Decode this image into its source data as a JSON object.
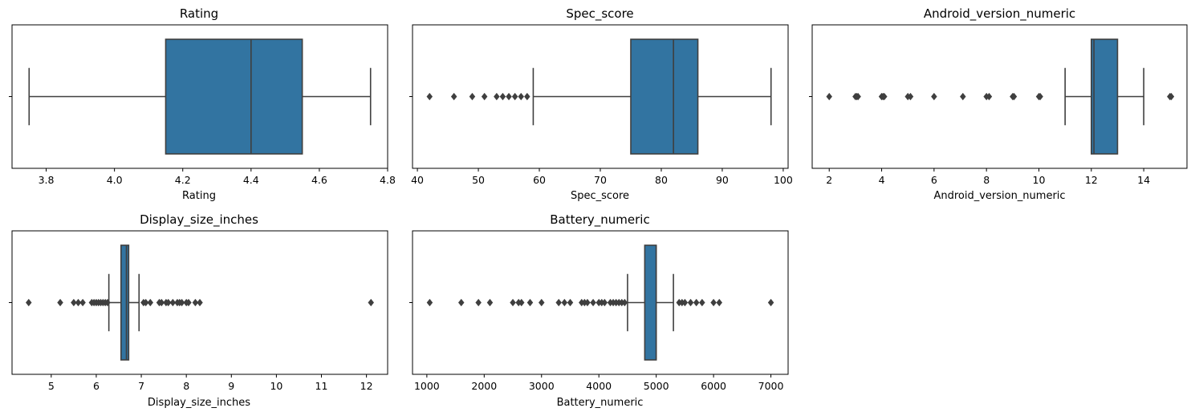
{
  "chart_data": [
    {
      "type": "box",
      "title": "Rating",
      "xlabel": "Rating",
      "xlim": [
        3.7,
        4.8
      ],
      "xticks": [
        3.8,
        4.0,
        4.2,
        4.4,
        4.6,
        4.8
      ],
      "xtick_labels": [
        "3.8",
        "4.0",
        "4.2",
        "4.4",
        "4.6",
        "4.8"
      ],
      "box": {
        "whisker_low": 3.75,
        "q1": 4.15,
        "median": 4.4,
        "q3": 4.55,
        "whisker_high": 4.75
      },
      "outliers": []
    },
    {
      "type": "box",
      "title": "Spec_score",
      "xlabel": "Spec_score",
      "xlim": [
        39.2,
        100.8
      ],
      "xticks": [
        40,
        50,
        60,
        70,
        80,
        90,
        100
      ],
      "xtick_labels": [
        "40",
        "50",
        "60",
        "70",
        "80",
        "90",
        "100"
      ],
      "box": {
        "whisker_low": 59,
        "q1": 75,
        "median": 82,
        "q3": 86,
        "whisker_high": 98
      },
      "outliers": [
        42,
        46,
        49,
        51,
        53,
        54,
        55,
        56,
        57,
        58
      ]
    },
    {
      "type": "box",
      "title": "Android_version_numeric",
      "xlabel": "Android_version_numeric",
      "xlim": [
        1.35,
        15.65
      ],
      "xticks": [
        2,
        4,
        6,
        8,
        10,
        12,
        14
      ],
      "xtick_labels": [
        "2",
        "4",
        "6",
        "8",
        "10",
        "12",
        "14"
      ],
      "box": {
        "whisker_low": 11,
        "q1": 12,
        "median": 12.1,
        "q3": 13,
        "whisker_high": 14
      },
      "outliers": [
        2,
        3,
        3.05,
        3.1,
        4,
        4.05,
        4.1,
        5,
        5.1,
        6,
        7.1,
        8,
        8.1,
        9,
        9.05,
        10,
        10.05,
        15,
        15.05
      ]
    },
    {
      "type": "box",
      "title": "Display_size_inches",
      "xlabel": "Display_size_inches",
      "xlim": [
        4.13,
        12.47
      ],
      "xticks": [
        5,
        6,
        7,
        8,
        9,
        10,
        11,
        12
      ],
      "xtick_labels": [
        "5",
        "6",
        "7",
        "8",
        "9",
        "10",
        "11",
        "12"
      ],
      "box": {
        "whisker_low": 6.28,
        "q1": 6.55,
        "median": 6.67,
        "q3": 6.72,
        "whisker_high": 6.95
      },
      "outliers": [
        4.5,
        5.2,
        5.5,
        5.6,
        5.7,
        5.9,
        5.95,
        6.0,
        6.05,
        6.1,
        6.15,
        6.2,
        6.25,
        7.05,
        7.1,
        7.2,
        7.4,
        7.45,
        7.55,
        7.6,
        7.7,
        7.8,
        7.85,
        7.9,
        8.0,
        8.05,
        8.2,
        8.3,
        12.1
      ]
    },
    {
      "type": "box",
      "title": "Battery_numeric",
      "xlabel": "Battery_numeric",
      "xlim": [
        750,
        7300
      ],
      "xticks": [
        1000,
        2000,
        3000,
        4000,
        5000,
        6000,
        7000
      ],
      "xtick_labels": [
        "1000",
        "2000",
        "3000",
        "4000",
        "5000",
        "6000",
        "7000"
      ],
      "box": {
        "whisker_low": 4500,
        "q1": 4800,
        "median": 5000,
        "q3": 5000,
        "whisker_high": 5300
      },
      "outliers": [
        1050,
        1600,
        1900,
        2100,
        2500,
        2600,
        2650,
        2800,
        3000,
        3300,
        3400,
        3500,
        3700,
        3750,
        3800,
        3900,
        4000,
        4050,
        4100,
        4200,
        4250,
        4300,
        4350,
        4400,
        4450,
        5400,
        5450,
        5500,
        5600,
        5700,
        5800,
        6000,
        6100,
        7000
      ]
    }
  ],
  "colors": {
    "box_fill": "#3274a1",
    "line": "#3f3f3f",
    "axis": "#000000"
  }
}
